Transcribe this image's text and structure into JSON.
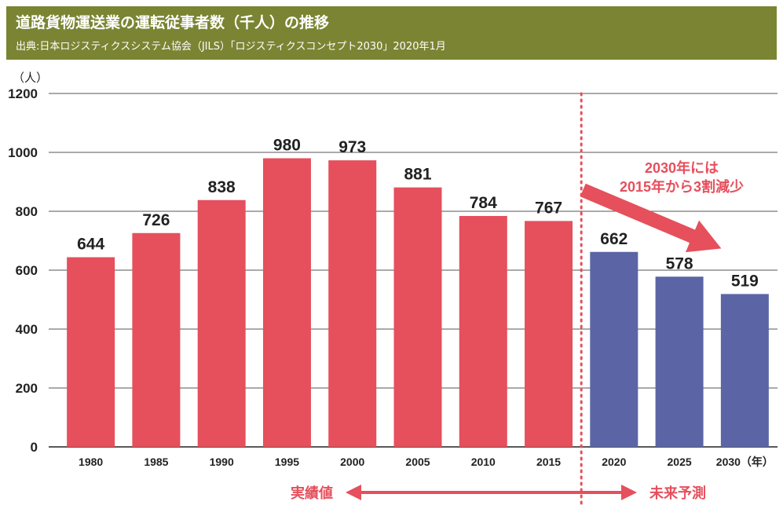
{
  "header": {
    "title": "道路貨物運送業の運転従事者数（千人）の推移",
    "source": "出典:日本ロジスティクスシステム協会（JILS）「ロジスティクスコンセプト2030」2020年1月"
  },
  "chart_data": {
    "type": "bar",
    "unit_label": "（人）",
    "ylim": [
      0,
      1200
    ],
    "yticks": [
      0,
      200,
      400,
      600,
      800,
      1000,
      1200
    ],
    "categories": [
      "1980",
      "1985",
      "1990",
      "1995",
      "2000",
      "2005",
      "2010",
      "2015",
      "2020",
      "2025",
      "2030（年）"
    ],
    "values": [
      644,
      726,
      838,
      980,
      973,
      881,
      784,
      767,
      662,
      578,
      519
    ],
    "value_labels": [
      "644",
      "726",
      "838",
      "980",
      "973",
      "881",
      "784",
      "767",
      "662",
      "578",
      "519"
    ],
    "grid": true,
    "colors": {
      "actual": "#e64f5c",
      "forecast": "#5b65a5",
      "accent": "#e64f5c"
    },
    "series_split": 8,
    "annotation": [
      "2030年には",
      "2015年から3割減少"
    ],
    "range_labels": {
      "actual": "実績値",
      "forecast": "未来予測"
    }
  }
}
